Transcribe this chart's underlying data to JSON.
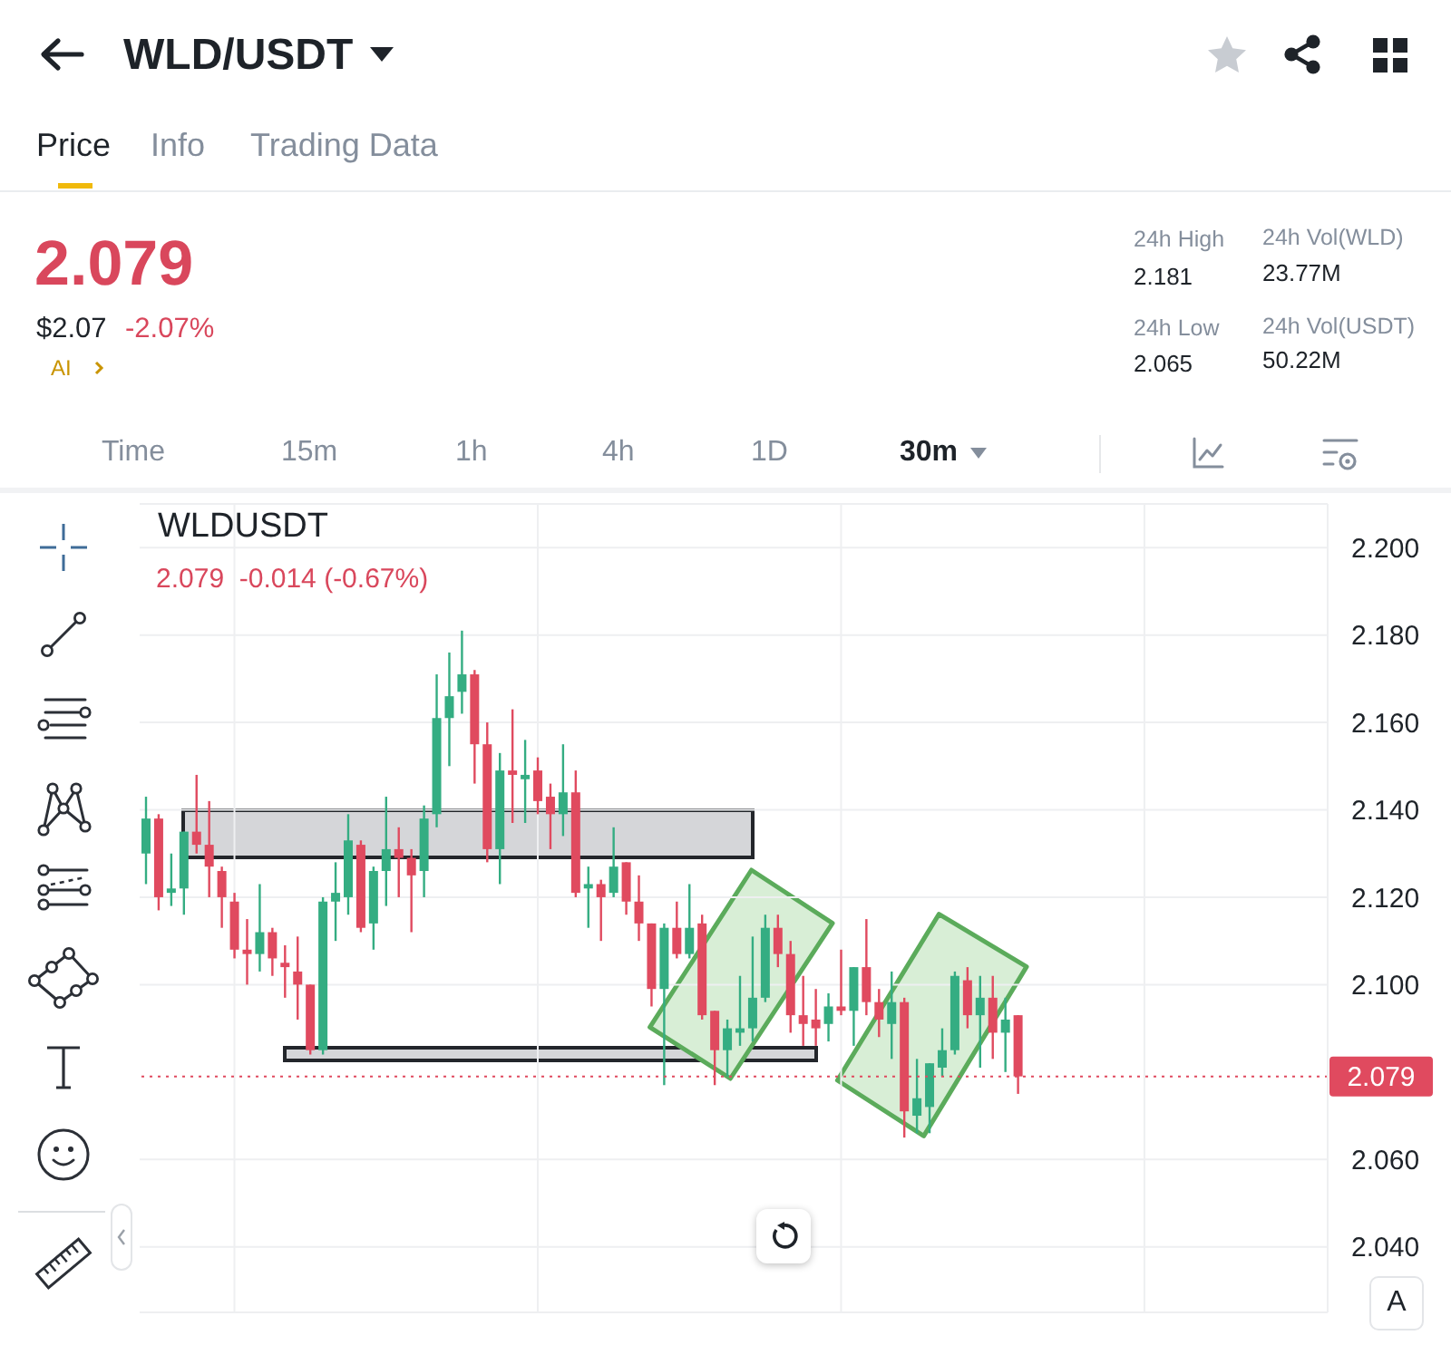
{
  "chart_data": {
    "type": "candlestick",
    "title": "WLDUSDT",
    "subtitle": "2.079  -0.014 (-0.67%)",
    "categories": [
      null,
      null,
      null,
      null,
      null,
      null,
      null,
      null,
      null,
      null,
      null,
      null,
      null,
      null,
      null,
      null,
      null,
      null,
      null,
      null,
      null,
      null,
      null,
      null,
      null,
      null,
      null,
      null,
      null,
      null,
      null,
      null,
      null,
      null,
      null,
      null,
      null,
      null,
      null,
      null,
      null,
      null,
      null,
      null,
      null,
      null,
      null,
      null,
      null,
      null,
      null,
      null,
      null,
      null,
      null,
      null,
      null,
      null,
      null,
      null,
      null,
      null,
      null,
      null,
      null,
      null,
      null,
      null,
      null,
      null,
      null,
      null,
      null,
      null,
      null,
      null,
      null,
      null,
      null,
      null,
      null,
      null,
      null,
      null,
      null,
      null,
      null,
      null,
      null,
      null,
      null,
      null,
      null,
      null
    ],
    "ohlc": [
      [
        2.13,
        2.143,
        2.123,
        2.138
      ],
      [
        2.138,
        2.139,
        2.117,
        2.12
      ],
      [
        2.121,
        2.13,
        2.118,
        2.122
      ],
      [
        2.122,
        2.135,
        2.116,
        2.135
      ],
      [
        2.135,
        2.148,
        2.13,
        2.132
      ],
      [
        2.132,
        2.142,
        2.12,
        2.127
      ],
      [
        2.126,
        2.127,
        2.113,
        2.12
      ],
      [
        2.119,
        2.121,
        2.106,
        2.108
      ],
      [
        2.108,
        2.115,
        2.1,
        2.107
      ],
      [
        2.107,
        2.123,
        2.103,
        2.112
      ],
      [
        2.112,
        2.113,
        2.102,
        2.106
      ],
      [
        2.105,
        2.109,
        2.097,
        2.104
      ],
      [
        2.103,
        2.111,
        2.092,
        2.1
      ],
      [
        2.1,
        2.1,
        2.084,
        2.085
      ],
      [
        2.085,
        2.12,
        2.084,
        2.119
      ],
      [
        2.119,
        2.128,
        2.11,
        2.121
      ],
      [
        2.12,
        2.139,
        2.116,
        2.133
      ],
      [
        2.132,
        2.133,
        2.112,
        2.113
      ],
      [
        2.114,
        2.127,
        2.108,
        2.126
      ],
      [
        2.126,
        2.143,
        2.118,
        2.131
      ],
      [
        2.131,
        2.136,
        2.12,
        2.129
      ],
      [
        2.129,
        2.131,
        2.112,
        2.125
      ],
      [
        2.126,
        2.141,
        2.12,
        2.138
      ],
      [
        2.139,
        2.171,
        2.136,
        2.161
      ],
      [
        2.161,
        2.176,
        2.15,
        2.166
      ],
      [
        2.167,
        2.181,
        2.162,
        2.171
      ],
      [
        2.171,
        2.172,
        2.146,
        2.155
      ],
      [
        2.155,
        2.16,
        2.128,
        2.131
      ],
      [
        2.131,
        2.153,
        2.123,
        2.149
      ],
      [
        2.149,
        2.163,
        2.137,
        2.148
      ],
      [
        2.147,
        2.156,
        2.137,
        2.148
      ],
      [
        2.149,
        2.152,
        2.139,
        2.142
      ],
      [
        2.143,
        2.146,
        2.131,
        2.139
      ],
      [
        2.139,
        2.155,
        2.134,
        2.144
      ],
      [
        2.144,
        2.149,
        2.12,
        2.121
      ],
      [
        2.122,
        2.127,
        2.113,
        2.123
      ],
      [
        2.123,
        2.124,
        2.11,
        2.12
      ],
      [
        2.121,
        2.136,
        2.12,
        2.127
      ],
      [
        2.128,
        2.128,
        2.116,
        2.119
      ],
      [
        2.119,
        2.125,
        2.11,
        2.114
      ],
      [
        2.114,
        2.114,
        2.095,
        2.099
      ],
      [
        2.099,
        2.114,
        2.077,
        2.113
      ],
      [
        2.113,
        2.119,
        2.106,
        2.107
      ],
      [
        2.107,
        2.123,
        2.106,
        2.113
      ],
      [
        2.114,
        2.116,
        2.092,
        2.093
      ],
      [
        2.094,
        2.094,
        2.077,
        2.085
      ],
      [
        2.085,
        2.092,
        2.079,
        2.09
      ],
      [
        2.089,
        2.102,
        2.086,
        2.09
      ],
      [
        2.09,
        2.111,
        2.087,
        2.097
      ],
      [
        2.097,
        2.116,
        2.096,
        2.113
      ],
      [
        2.113,
        2.116,
        2.104,
        2.107
      ],
      [
        2.107,
        2.11,
        2.089,
        2.093
      ],
      [
        2.093,
        2.102,
        2.086,
        2.091
      ],
      [
        2.092,
        2.099,
        2.086,
        2.09
      ],
      [
        2.091,
        2.098,
        2.087,
        2.095
      ],
      [
        2.095,
        2.108,
        2.093,
        2.094
      ],
      [
        2.094,
        2.104,
        2.086,
        2.104
      ],
      [
        2.104,
        2.115,
        2.093,
        2.096
      ],
      [
        2.096,
        2.099,
        2.088,
        2.092
      ],
      [
        2.091,
        2.103,
        2.083,
        2.096
      ],
      [
        2.096,
        2.097,
        2.065,
        2.071
      ],
      [
        2.07,
        2.083,
        2.066,
        2.074
      ],
      [
        2.072,
        2.082,
        2.066,
        2.082
      ],
      [
        2.081,
        2.09,
        2.079,
        2.085
      ],
      [
        2.085,
        2.103,
        2.084,
        2.102
      ],
      [
        2.101,
        2.104,
        2.09,
        2.093
      ],
      [
        2.093,
        2.102,
        2.081,
        2.097
      ],
      [
        2.097,
        2.102,
        2.083,
        2.089
      ],
      [
        2.089,
        2.097,
        2.08,
        2.092
      ],
      [
        2.093,
        2.093,
        2.075,
        2.079
      ],
      null,
      null,
      null,
      null,
      null,
      null,
      null,
      null,
      null,
      null,
      null,
      null,
      null,
      null,
      null,
      null,
      null,
      null,
      null,
      null,
      null,
      null,
      null,
      null
    ],
    "colors": [
      "#34ad82",
      "#e04a5f",
      "#34ad82",
      "#34ad82",
      "#e04a5f",
      "#e04a5f",
      "#e04a5f",
      "#e04a5f",
      "#e04a5f",
      "#34ad82",
      "#e04a5f",
      "#e04a5f",
      "#e04a5f",
      "#e04a5f",
      "#34ad82",
      "#34ad82",
      "#34ad82",
      "#e04a5f",
      "#34ad82",
      "#34ad82",
      "#e04a5f",
      "#e04a5f",
      "#34ad82",
      "#34ad82",
      "#34ad82",
      "#34ad82",
      "#e04a5f",
      "#e04a5f",
      "#34ad82",
      "#e04a5f",
      "#34ad82",
      "#e04a5f",
      "#e04a5f",
      "#34ad82",
      "#e04a5f",
      "#34ad82",
      "#e04a5f",
      "#34ad82",
      "#e04a5f",
      "#e04a5f",
      "#e04a5f",
      "#34ad82",
      "#e04a5f",
      "#34ad82",
      "#e04a5f",
      "#e04a5f",
      "#34ad82",
      "#34ad82",
      "#34ad82",
      "#34ad82",
      "#e04a5f",
      "#e04a5f",
      "#e04a5f",
      "#e04a5f",
      "#34ad82",
      "#e04a5f",
      "#34ad82",
      "#e04a5f",
      "#e04a5f",
      "#34ad82",
      "#e04a5f",
      "#34ad82",
      "#34ad82",
      "#34ad82",
      "#34ad82",
      "#e04a5f",
      "#34ad82",
      "#e04a5f",
      "#34ad82",
      "#e04a5f",
      null,
      null,
      null,
      null,
      null,
      null,
      null,
      null,
      null,
      null,
      null,
      null,
      null,
      null,
      null,
      null,
      null,
      null,
      null,
      null,
      null,
      null,
      null,
      null
    ],
    "ylim": [
      2.025,
      2.21
    ],
    "yticks": [
      {
        "value": 2.04,
        "label": "2.040"
      },
      {
        "value": 2.06,
        "label": "2.060"
      },
      {
        "value": 2.1,
        "label": "2.100"
      },
      {
        "value": 2.12,
        "label": "2.120"
      },
      {
        "value": 2.14,
        "label": "2.140"
      },
      {
        "value": 2.16,
        "label": "2.160"
      },
      {
        "value": 2.18,
        "label": "2.180"
      },
      {
        "value": 2.2,
        "label": "2.200"
      }
    ],
    "ref_lines": [
      {
        "axis": "y",
        "value": 2.079,
        "label": "2.079",
        "color": "#e04a5f",
        "line_style": "dotted"
      }
    ],
    "grid": true,
    "tick_labels": "y",
    "annotations": [
      "WLD/USDT",
      "Price",
      "Info",
      "Trading Data",
      "2.079",
      "$2.07",
      "-2.07%",
      "AI",
      "24h High",
      "2.181",
      "24h Vol(WLD)",
      "23.77M",
      "24h Low",
      "2.065",
      "24h Vol(USDT)",
      "50.22M",
      "Time",
      "15m",
      "1h",
      "4h",
      "1D",
      "30m",
      "A"
    ]
  }
}
